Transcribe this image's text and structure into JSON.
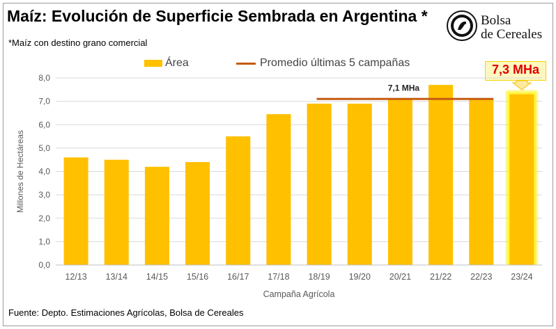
{
  "header": {
    "title": "Maíz: Evolución de Superficie Sembrada en Argentina *",
    "subtitle": "*Maíz con destino grano comercial"
  },
  "logo": {
    "line1": "Bolsa",
    "line2": "de Cereales",
    "icon": "bolsa-de-cereales-seal"
  },
  "highlight": {
    "label": "7,3 MHa"
  },
  "source": "Fuente: Depto. Estimaciones Agrícolas, Bolsa de Cereales",
  "colors": {
    "bar": "#FFC000",
    "bar_highlight": "#FFC000",
    "glow": "#FFF200",
    "average_line": "#C55A11",
    "highlight_text": "#E00000",
    "grid": "#D9D9D9",
    "axis_text": "#595959"
  },
  "chart_data": {
    "type": "bar",
    "title": "Maíz: Evolución de Superficie Sembrada en Argentina *",
    "xlabel": "Campaña Agrícola",
    "ylabel": "Millones de Hectáreas",
    "ylim": [
      0,
      8
    ],
    "yticks": [
      0,
      1,
      2,
      3,
      4,
      5,
      6,
      7,
      8
    ],
    "ytick_labels": [
      "0,0",
      "1,0",
      "2,0",
      "3,0",
      "4,0",
      "5,0",
      "6,0",
      "7,0",
      "8,0"
    ],
    "grid": true,
    "categories": [
      "12/13",
      "13/14",
      "14/15",
      "15/16",
      "16/17",
      "17/18",
      "18/19",
      "19/20",
      "20/21",
      "21/22",
      "22/23",
      "23/24"
    ],
    "series": [
      {
        "name": "Área",
        "values": [
          4.6,
          4.5,
          4.2,
          4.4,
          5.5,
          6.45,
          6.9,
          6.9,
          7.1,
          7.7,
          7.1,
          7.3
        ]
      }
    ],
    "average": {
      "name": "Promedio últimas 5 campañas",
      "value": 7.1,
      "label": "7,1 MHa",
      "from_category": "18/19",
      "to_category": "22/23"
    },
    "highlighted_category": "23/24",
    "legend": [
      "Área",
      "Promedio últimas 5 campañas"
    ],
    "legend_position": "top"
  }
}
